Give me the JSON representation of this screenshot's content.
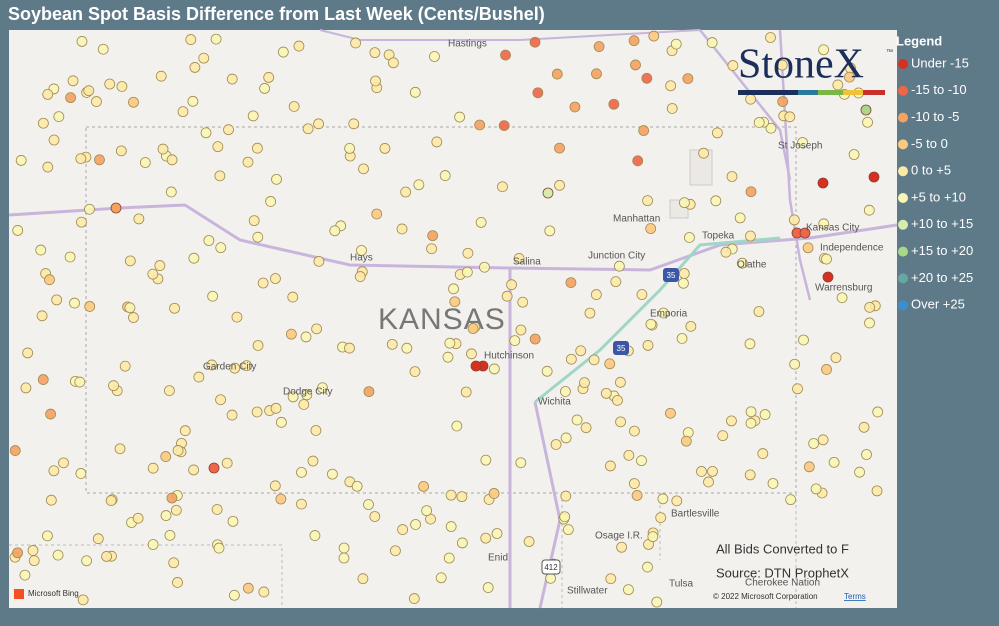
{
  "title": "Soybean Spot Basis Difference from Last Week (Cents/Bushel)",
  "legend": {
    "title": "Legend",
    "items": [
      {
        "label": "Under -15",
        "color": "#d7301f"
      },
      {
        "label": "-15 to -10",
        "color": "#ef6548"
      },
      {
        "label": "-10 to -5",
        "color": "#f4a261"
      },
      {
        "label": "-5 to 0",
        "color": "#fdc97e"
      },
      {
        "label": "0 to +5",
        "color": "#fde9a6"
      },
      {
        "label": "+5 to +10",
        "color": "#f8f6b4"
      },
      {
        "label": "+10 to +15",
        "color": "#d6ecae"
      },
      {
        "label": "+15 to +20",
        "color": "#a8d88a"
      },
      {
        "label": "+20 to +25",
        "color": "#66a8a0"
      },
      {
        "label": "Over +25",
        "color": "#3b8fd0"
      }
    ]
  },
  "logo": {
    "text": "StoneX",
    "mark": "™"
  },
  "map": {
    "state": "KANSAS",
    "places": [
      "Hastings",
      "St Joseph",
      "Manhattan",
      "Topeka",
      "Kansas City",
      "Independence",
      "Hays",
      "Salina",
      "Junction City",
      "Olathe",
      "Warrensburg",
      "Emporia",
      "Hutchinson",
      "Garden City",
      "Dodge City",
      "Wichita",
      "Bartlesville",
      "Osage I.R.",
      "Enid",
      "Stillwater",
      "Tulsa",
      "Cherokee Nation"
    ],
    "shields": [
      "35",
      "35",
      "412"
    ]
  },
  "notes": [
    "All Bids Converted to F",
    "Source: DTN ProphetX"
  ],
  "attribution": {
    "provider": "Microsoft Bing",
    "copyright": "© 2022 Microsoft Corporation",
    "terms": "Terms"
  }
}
